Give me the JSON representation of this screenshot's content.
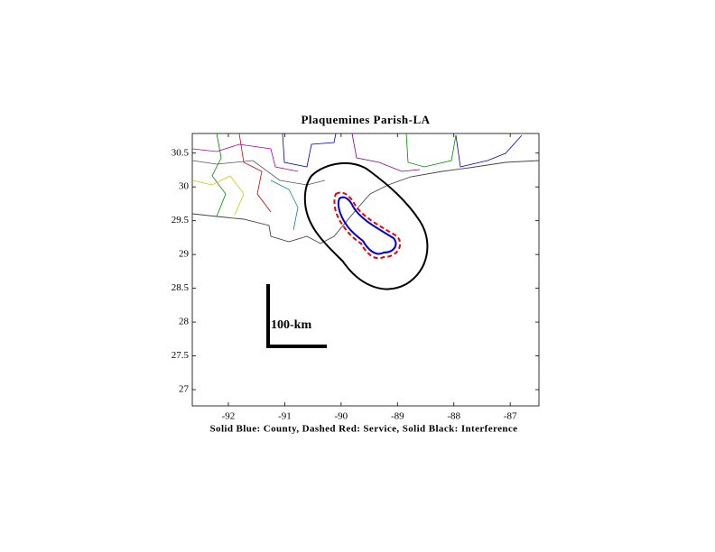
{
  "chart_data": {
    "type": "map",
    "title": "Plaquemines Parish-LA",
    "caption": "Solid Blue: County, Dashed Red: Service, Solid Black: Interference",
    "scale_bar_label": "100-km",
    "xlim": [
      -92.64,
      -86.49
    ],
    "ylim": [
      26.76,
      30.79
    ],
    "xticks": [
      -92,
      -91,
      -90,
      -89,
      -88,
      -87
    ],
    "yticks": [
      27,
      27.5,
      28,
      28.5,
      29,
      29.5,
      30,
      30.5
    ]
  }
}
